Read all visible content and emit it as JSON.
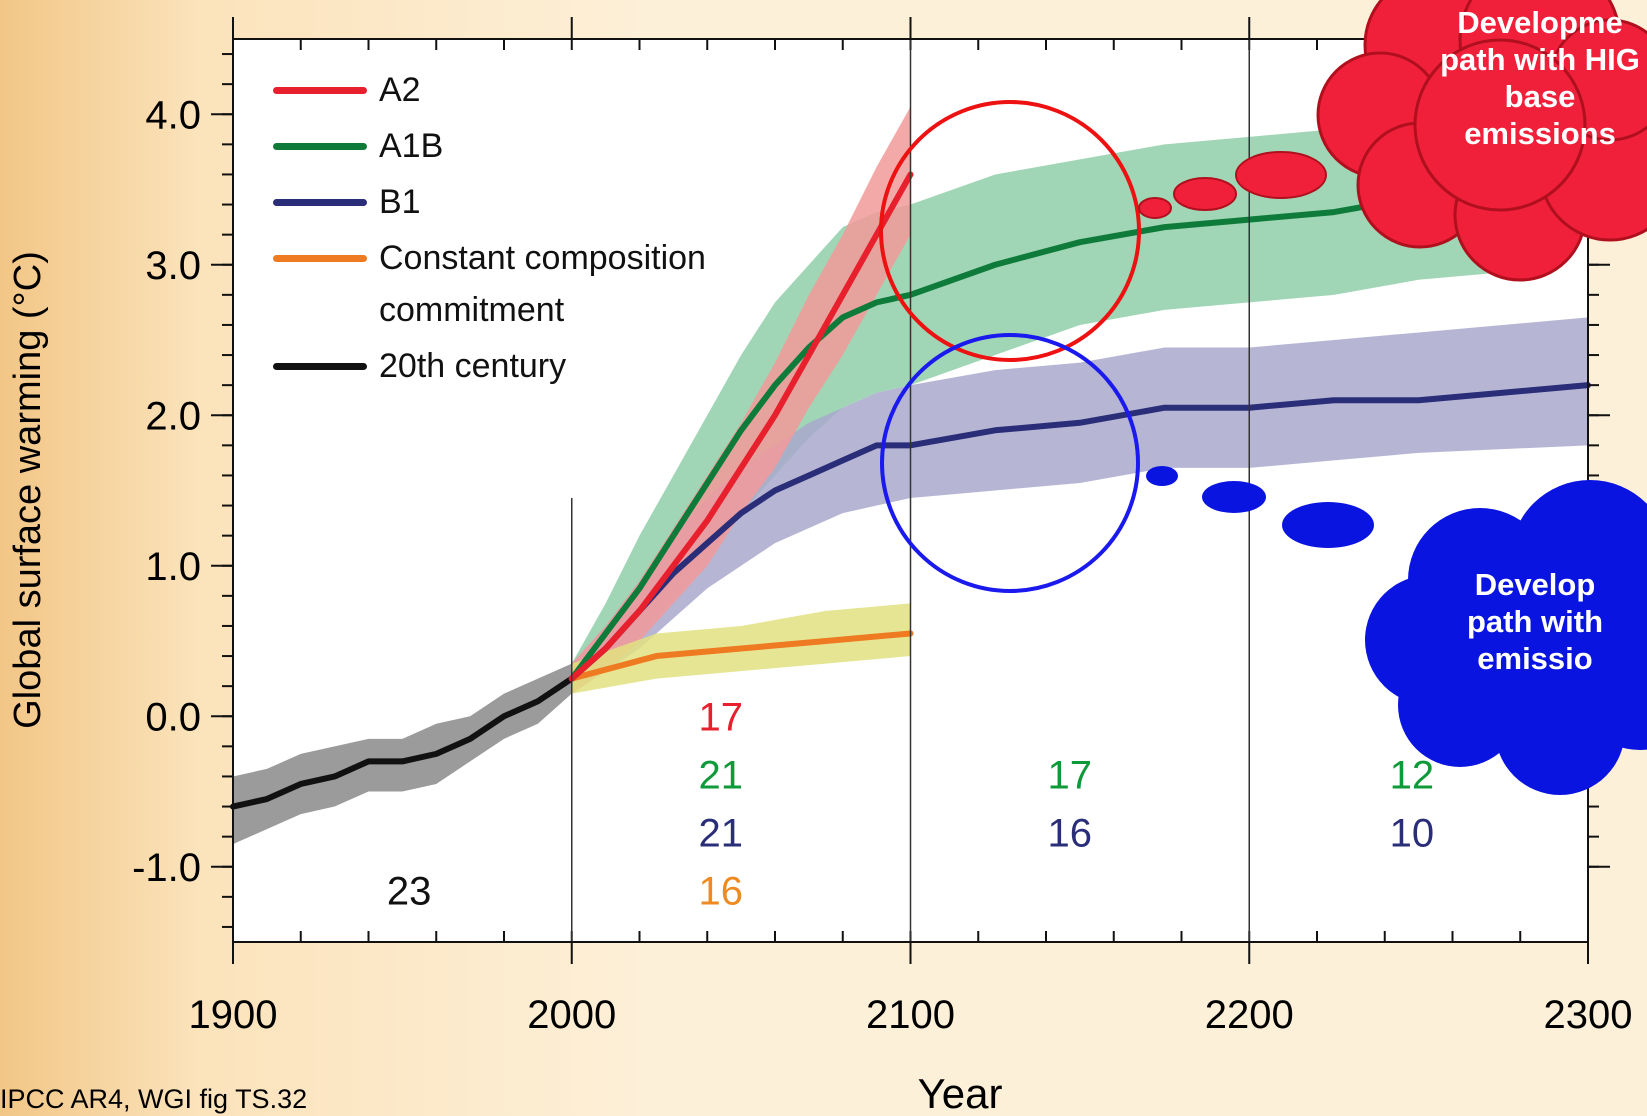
{
  "chart_data": {
    "type": "line",
    "y_label": "Global surface warming (°C)",
    "x_label": "Year",
    "source": "IPCC AR4, WGI fig TS.32",
    "xlim": [
      1900,
      2300
    ],
    "xticks": [
      1900,
      2000,
      2100,
      2200,
      2300
    ],
    "ylim": [
      -1.5,
      4.5
    ],
    "yticks": [
      {
        "value": -1,
        "label": "-1.0"
      },
      {
        "value": 0,
        "label": "0.0"
      },
      {
        "value": 1,
        "label": "1.0"
      },
      {
        "value": 2,
        "label": "2.0"
      },
      {
        "value": 3,
        "label": "3.0"
      },
      {
        "value": 4,
        "label": "4.0"
      }
    ],
    "series": [
      {
        "name": "A2",
        "color": "#e8202e",
        "band_color": "#f29a9a",
        "x": [
          2000,
          2010,
          2020,
          2030,
          2040,
          2050,
          2060,
          2070,
          2080,
          2090,
          2100
        ],
        "values": [
          0.25,
          0.45,
          0.7,
          1.0,
          1.3,
          1.65,
          2.0,
          2.4,
          2.8,
          3.2,
          3.6
        ],
        "lower": [
          0.15,
          0.3,
          0.5,
          0.75,
          1.0,
          1.35,
          1.65,
          2.05,
          2.4,
          2.8,
          3.2
        ],
        "upper": [
          0.35,
          0.6,
          0.9,
          1.25,
          1.6,
          1.95,
          2.35,
          2.8,
          3.2,
          3.65,
          4.05
        ]
      },
      {
        "name": "A1B",
        "color": "#0f7b3a",
        "band_color": "#8fcfa8",
        "x": [
          2000,
          2010,
          2020,
          2030,
          2040,
          2050,
          2060,
          2070,
          2080,
          2090,
          2100,
          2125,
          2150,
          2175,
          2200,
          2225,
          2250,
          2275
        ],
        "values": [
          0.25,
          0.55,
          0.85,
          1.2,
          1.55,
          1.9,
          2.2,
          2.45,
          2.65,
          2.75,
          2.8,
          3.0,
          3.15,
          3.25,
          3.3,
          3.35,
          3.45,
          3.5
        ],
        "lower": [
          0.15,
          0.3,
          0.5,
          0.8,
          1.05,
          1.35,
          1.6,
          1.85,
          2.05,
          2.15,
          2.2,
          2.4,
          2.6,
          2.7,
          2.75,
          2.8,
          2.9,
          2.95
        ],
        "upper": [
          0.35,
          0.75,
          1.2,
          1.6,
          2.0,
          2.4,
          2.75,
          3.0,
          3.25,
          3.35,
          3.4,
          3.6,
          3.7,
          3.8,
          3.85,
          3.9,
          4.0,
          4.05
        ]
      },
      {
        "name": "B1",
        "color": "#2a2d78",
        "band_color": "#a9a9cc",
        "x": [
          2000,
          2010,
          2020,
          2030,
          2040,
          2050,
          2060,
          2070,
          2080,
          2090,
          2100,
          2125,
          2150,
          2175,
          2200,
          2225,
          2250,
          2300
        ],
        "values": [
          0.25,
          0.45,
          0.7,
          0.95,
          1.15,
          1.35,
          1.5,
          1.6,
          1.7,
          1.8,
          1.8,
          1.9,
          1.95,
          2.05,
          2.05,
          2.1,
          2.1,
          2.2
        ],
        "lower": [
          0.15,
          0.3,
          0.45,
          0.65,
          0.85,
          1.0,
          1.15,
          1.25,
          1.35,
          1.4,
          1.45,
          1.5,
          1.55,
          1.65,
          1.65,
          1.7,
          1.75,
          1.8
        ],
        "upper": [
          0.35,
          0.6,
          0.9,
          1.2,
          1.45,
          1.65,
          1.8,
          1.95,
          2.05,
          2.15,
          2.2,
          2.3,
          2.35,
          2.45,
          2.45,
          2.5,
          2.55,
          2.65
        ]
      },
      {
        "name": "Constant composition commitment",
        "color": "#ee7a22",
        "band_color": "#e2e080",
        "x": [
          2000,
          2025,
          2050,
          2075,
          2100
        ],
        "values": [
          0.25,
          0.4,
          0.45,
          0.5,
          0.55
        ],
        "lower": [
          0.15,
          0.25,
          0.3,
          0.35,
          0.4
        ],
        "upper": [
          0.35,
          0.55,
          0.6,
          0.7,
          0.75
        ]
      },
      {
        "name": "20th century",
        "color": "#111111",
        "band_color": "#8a8a8a",
        "x": [
          1900,
          1910,
          1920,
          1930,
          1940,
          1950,
          1960,
          1970,
          1980,
          1990,
          2000
        ],
        "values": [
          -0.6,
          -0.55,
          -0.45,
          -0.4,
          -0.3,
          -0.3,
          -0.25,
          -0.15,
          0.0,
          0.1,
          0.25
        ],
        "lower": [
          -0.85,
          -0.75,
          -0.65,
          -0.6,
          -0.5,
          -0.5,
          -0.45,
          -0.3,
          -0.15,
          -0.05,
          0.15
        ],
        "upper": [
          -0.4,
          -0.35,
          -0.25,
          -0.2,
          -0.15,
          -0.15,
          -0.05,
          0.0,
          0.15,
          0.25,
          0.35
        ]
      }
    ],
    "model_counts": [
      [
        {
          "text": "23",
          "color": "#111111"
        }
      ],
      [
        {
          "text": "17",
          "color": "#e8202e"
        },
        {
          "text": "21",
          "color": "#0f9a3a"
        },
        {
          "text": "21",
          "color": "#2a2d78"
        },
        {
          "text": "16",
          "color": "#ee8a22"
        }
      ],
      [
        {
          "text": "17",
          "color": "#0f9a3a"
        },
        {
          "text": "16",
          "color": "#2a2d78"
        }
      ],
      [
        {
          "text": "12",
          "color": "#0f9a3a"
        },
        {
          "text": "10",
          "color": "#2a2d78"
        }
      ]
    ],
    "callouts": [
      {
        "lines": [
          "Developme",
          "path with HIG",
          "base",
          "emissions"
        ],
        "color": "#f0203a"
      },
      {
        "lines": [
          "Develop",
          "path with",
          "emissio"
        ],
        "color": "#0a14e0"
      }
    ]
  }
}
